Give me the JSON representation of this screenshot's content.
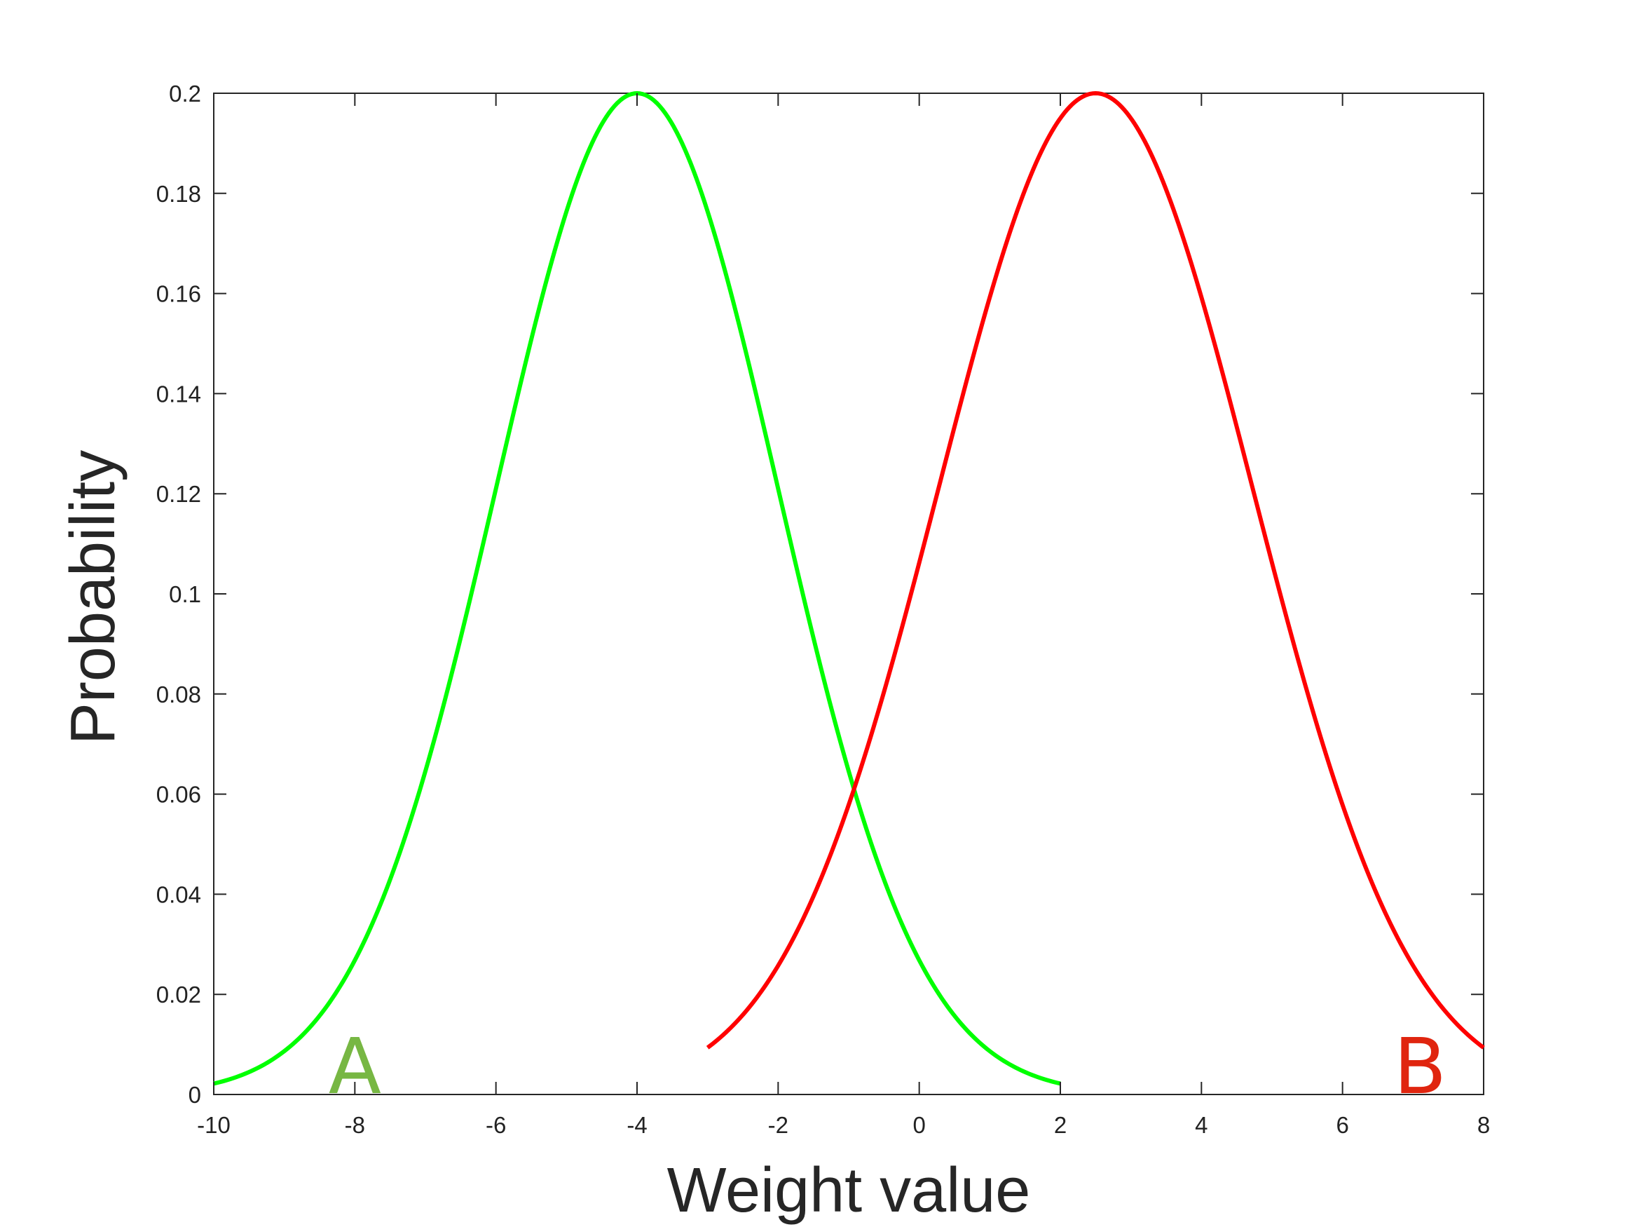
{
  "chart_data": {
    "type": "line",
    "title": "",
    "xlabel": "Weight value",
    "ylabel": "Probability",
    "xlim": [
      -10,
      8
    ],
    "ylim": [
      0,
      0.2
    ],
    "xticks": [
      -10,
      -8,
      -6,
      -4,
      -2,
      0,
      2,
      4,
      6,
      8
    ],
    "xtick_labels": [
      "-10",
      "-8",
      "-6",
      "-4",
      "-2",
      "0",
      "2",
      "4",
      "6",
      "8"
    ],
    "yticks": [
      0,
      0.02,
      0.04,
      0.06,
      0.08,
      0.1,
      0.12,
      0.14,
      0.16,
      0.18,
      0.2
    ],
    "ytick_labels": [
      "0",
      "0.02",
      "0.04",
      "0.06",
      "0.08",
      "0.1",
      "0.12",
      "0.14",
      "0.16",
      "0.18",
      "0.2"
    ],
    "grid": false,
    "series": [
      {
        "name": "A",
        "color": "#00ff00",
        "label_color": "#77b743",
        "x": [
          -10,
          -9,
          -8,
          -7,
          -6,
          -5,
          -4,
          -3,
          -2,
          -1,
          0,
          1,
          2
        ],
        "y": [
          0.0022,
          0.0089,
          0.027,
          0.0648,
          0.121,
          0.176,
          0.2,
          0.176,
          0.121,
          0.0648,
          0.027,
          0.0089,
          0.0022
        ],
        "label_at": [
          -8,
          0.0003
        ]
      },
      {
        "name": "B",
        "color": "#ff0000",
        "label_color": "#e0250f",
        "x": [
          -3,
          -2,
          -1,
          0,
          1,
          2,
          2.5,
          3,
          4,
          5,
          6,
          7,
          8
        ],
        "y": [
          0.0044,
          0.0153,
          0.0432,
          0.0986,
          0.164,
          0.197,
          0.2,
          0.197,
          0.164,
          0.0986,
          0.0432,
          0.0153,
          0.0044
        ],
        "label_at": [
          7.1,
          0.0003
        ]
      }
    ]
  }
}
